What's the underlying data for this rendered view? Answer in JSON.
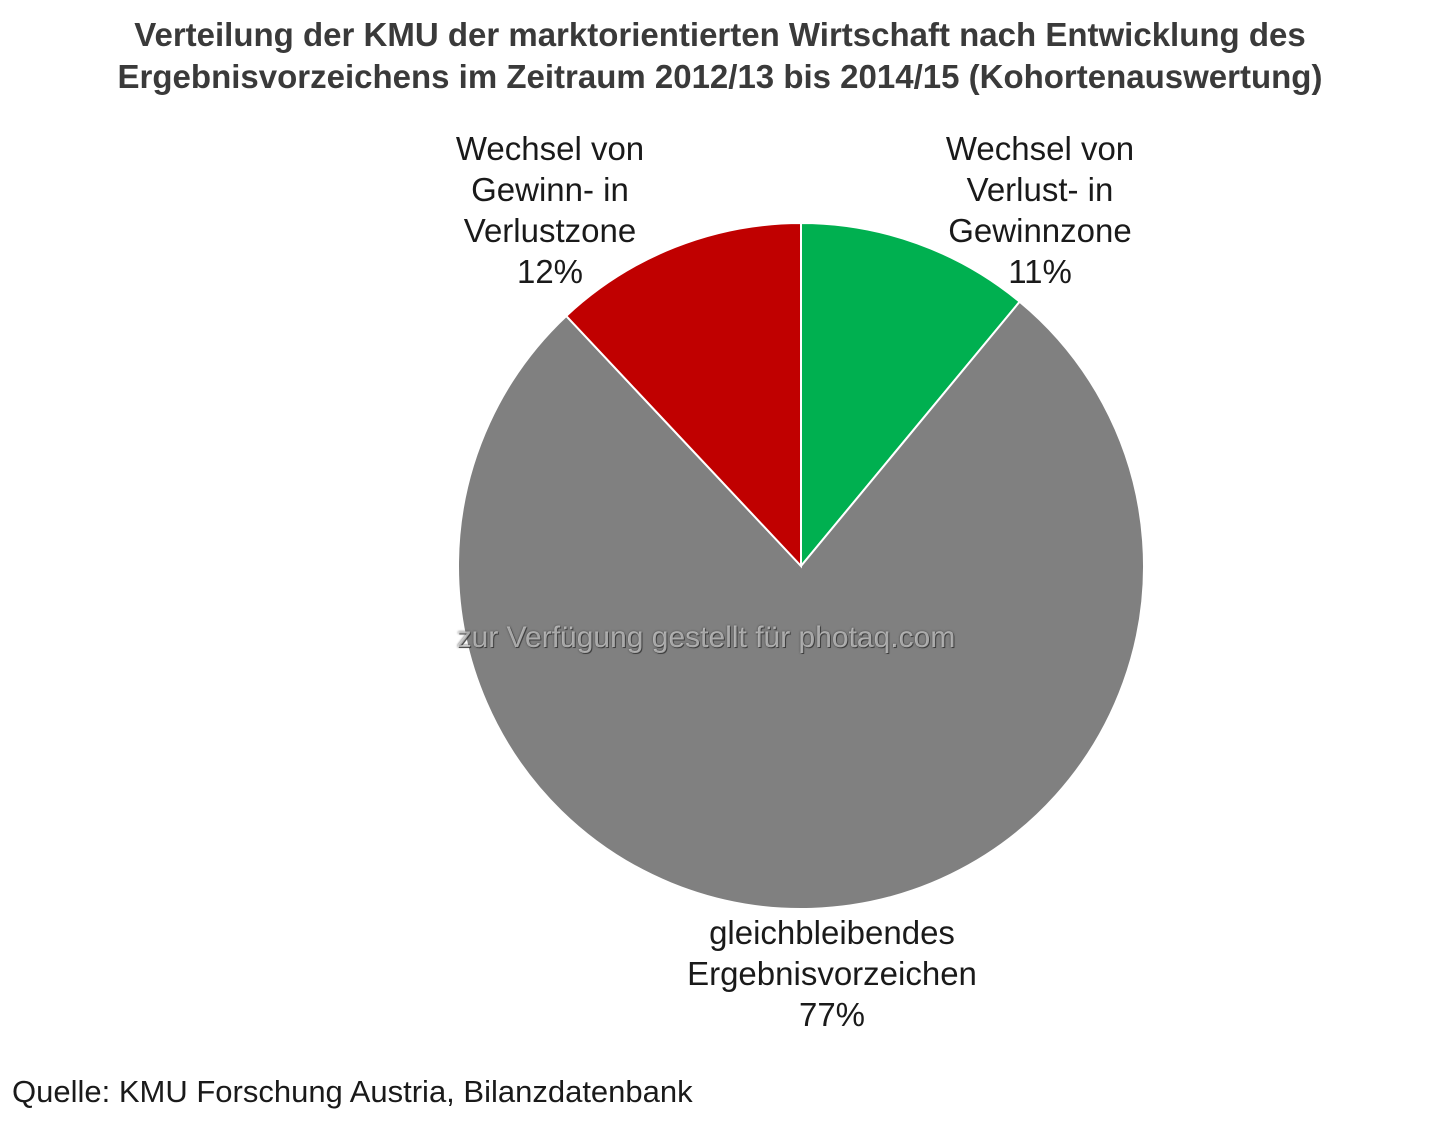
{
  "chart_data": {
    "type": "pie",
    "title_lines": [
      "Verteilung der KMU der marktorientierten Wirtschaft nach Entwicklung des",
      "Ergebnisvorzeichens im Zeitraum 2012/13 bis 2014/15 (Kohortenauswertung)"
    ],
    "slices": [
      {
        "label_lines": [
          "Wechsel von",
          "Verlust- in",
          "Gewinnzone"
        ],
        "value": 11,
        "value_label": "11%",
        "color": "#00b050"
      },
      {
        "label_lines": [
          "gleichbleibendes",
          "Ergebnisvorzeichen"
        ],
        "value": 77,
        "value_label": "77%",
        "color": "#808080"
      },
      {
        "label_lines": [
          "Wechsel von",
          "Gewinn- in",
          "Verlustzone"
        ],
        "value": 12,
        "value_label": "12%",
        "color": "#c00000"
      }
    ],
    "start_angle": "12 o'clock",
    "direction": "clockwise",
    "legend": "none"
  },
  "watermark": "zur Verfügung gestellt für photaq.com",
  "source": "Quelle: KMU Forschung Austria, Bilanzdatenbank"
}
